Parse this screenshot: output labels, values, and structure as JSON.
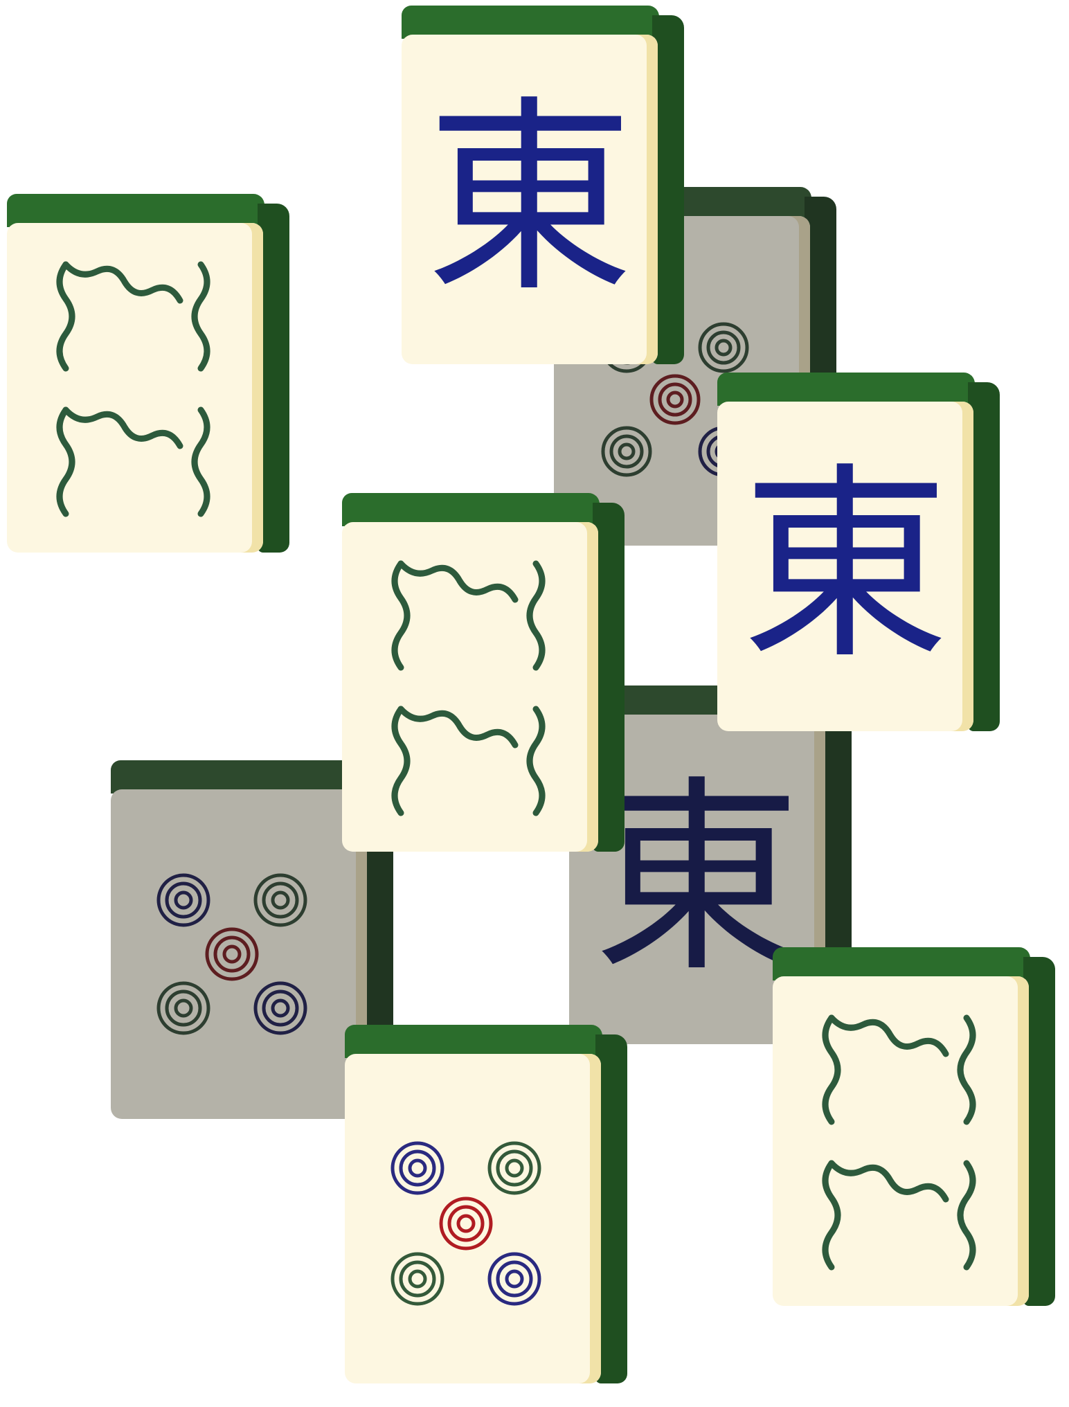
{
  "board": {
    "tiles": [
      {
        "name": "tile-circles-back-top",
        "suit": "five-circles",
        "dimmed": true
      },
      {
        "name": "tile-circles-back-left",
        "suit": "five-circles",
        "dimmed": true
      },
      {
        "name": "tile-east-back",
        "suit": "east-wind",
        "glyph": "東",
        "dimmed": true
      },
      {
        "name": "tile-bamboo-top-left",
        "suit": "two-bamboo",
        "dimmed": false
      },
      {
        "name": "tile-east-top",
        "suit": "east-wind",
        "glyph": "東",
        "dimmed": false
      },
      {
        "name": "tile-east-right",
        "suit": "east-wind",
        "glyph": "東",
        "dimmed": false
      },
      {
        "name": "tile-bamboo-center",
        "suit": "two-bamboo",
        "dimmed": false
      },
      {
        "name": "tile-bamboo-bottom-right",
        "suit": "two-bamboo",
        "dimmed": false
      },
      {
        "name": "tile-circles-bottom",
        "suit": "five-circles",
        "dimmed": false
      }
    ]
  },
  "colors": {
    "tile_top": "#2b6d2c",
    "tile_side": "#1f4f20",
    "face": "#fdf7e1",
    "bamboo": "#2d5a3c",
    "east": "#1a2388",
    "circle_blue": "#2a2a80",
    "circle_green": "#345a3a",
    "circle_red": "#b01c22"
  }
}
